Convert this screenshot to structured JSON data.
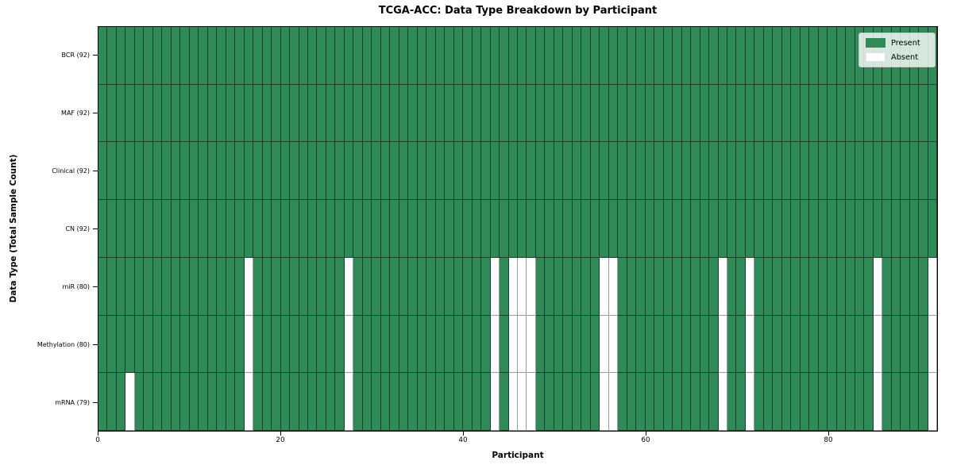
{
  "figure": {
    "title": "TCGA-ACC: Data Type Breakdown by Participant"
  },
  "axes": {
    "xlabel": "Participant",
    "ylabel": "Data Type (Total Sample Count)",
    "x_tick_labels": [
      "0",
      "20",
      "40",
      "60",
      "80"
    ],
    "y_tick_labels": [
      "BCR (92)",
      "MAF (92)",
      "Clinical (92)",
      "CN (92)",
      "miR (80)",
      "Methylation (80)",
      "mRNA (79)"
    ]
  },
  "legend": {
    "present_label": "Present",
    "absent_label": "Absent",
    "position": "upper right"
  },
  "chart_data": {
    "type": "heatmap",
    "title": "TCGA-ACC: Data Type Breakdown by Participant",
    "xlabel": "Participant",
    "ylabel": "Data Type (Total Sample Count)",
    "x_ticks": [
      0,
      20,
      40,
      60,
      80
    ],
    "x_range": [
      0,
      92
    ],
    "n_participants": 92,
    "grid": "cell-borders",
    "legend_position": "upper right",
    "legend_entries": [
      {
        "label": "Present",
        "color": "#2e8b57"
      },
      {
        "label": "Absent",
        "color": "#ffffff"
      }
    ],
    "rows": [
      {
        "label": "BCR (92)",
        "data_type": "BCR",
        "total_sample_count": 92,
        "absent_participants": []
      },
      {
        "label": "MAF (92)",
        "data_type": "MAF",
        "total_sample_count": 92,
        "absent_participants": []
      },
      {
        "label": "Clinical (92)",
        "data_type": "Clinical",
        "total_sample_count": 92,
        "absent_participants": []
      },
      {
        "label": "CN (92)",
        "data_type": "CN",
        "total_sample_count": 92,
        "absent_participants": []
      },
      {
        "label": "miR (80)",
        "data_type": "miR",
        "total_sample_count": 80,
        "absent_participants": [
          16,
          27,
          43,
          45,
          46,
          47,
          55,
          56,
          68,
          71,
          85,
          91
        ]
      },
      {
        "label": "Methylation (80)",
        "data_type": "Methylation",
        "total_sample_count": 80,
        "absent_participants": [
          16,
          27,
          43,
          45,
          46,
          47,
          55,
          56,
          68,
          71,
          85,
          91
        ]
      },
      {
        "label": "mRNA (79)",
        "data_type": "mRNA",
        "total_sample_count": 79,
        "absent_participants": [
          3,
          16,
          27,
          43,
          45,
          46,
          47,
          55,
          56,
          68,
          71,
          85,
          91
        ]
      }
    ],
    "colors": {
      "present": "#2e8b57",
      "absent": "#ffffff",
      "present_edge": "#17402a",
      "absent_edge": "#9a9a9a",
      "spine": "#000000",
      "background": "#ffffff"
    }
  }
}
